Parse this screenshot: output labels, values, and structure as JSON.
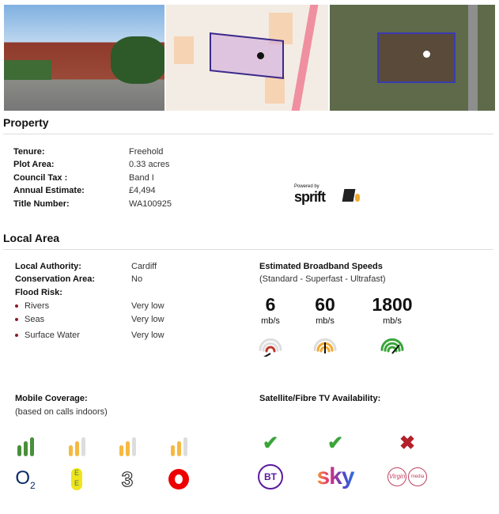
{
  "property": {
    "title": "Property",
    "rows": [
      {
        "label": "Tenure:",
        "value": "Freehold"
      },
      {
        "label": "Plot Area:",
        "value": "0.33 acres"
      },
      {
        "label": "Council Tax :",
        "value": "Band I"
      },
      {
        "label": "Annual Estimate:",
        "value": "£4,494"
      },
      {
        "label": "Title Number:",
        "value": "WA100925"
      }
    ],
    "powered_by": "Powered by",
    "logo_text": "sprift"
  },
  "local_area": {
    "title": "Local Area",
    "rows": [
      {
        "label": "Local Authority:",
        "value": "Cardiff"
      },
      {
        "label": "Conservation Area:",
        "value": "No"
      },
      {
        "label": "Flood Risk:",
        "value": ""
      }
    ],
    "flood": [
      {
        "label": "Rivers",
        "value": "Very low"
      },
      {
        "label": "Seas",
        "value": "Very low"
      },
      {
        "label": "Surface Water",
        "value": "Very low"
      }
    ]
  },
  "broadband": {
    "title": "Estimated Broadband Speeds",
    "subtitle": "(Standard - Superfast - Ultrafast)",
    "speeds": [
      {
        "value": "6",
        "unit": "mb/s",
        "color": "#c0392b"
      },
      {
        "value": "60",
        "unit": "mb/s",
        "color": "#f0a92e"
      },
      {
        "value": "1800",
        "unit": "mb/s",
        "color": "#3aa53a"
      }
    ]
  },
  "mobile": {
    "title": "Mobile Coverage:",
    "subtitle": "(based on calls indoors)",
    "operators": [
      {
        "name": "O2",
        "bars": 3,
        "color": "#4a8f3a"
      },
      {
        "name": "EE",
        "bars": 2,
        "color": "#f5b942"
      },
      {
        "name": "3",
        "bars": 2,
        "color": "#f5b942"
      },
      {
        "name": "Vodafone",
        "bars": 2,
        "color": "#f5b942"
      }
    ]
  },
  "tv": {
    "title": "Satellite/Fibre TV Availability:",
    "providers": [
      {
        "name": "BT",
        "available": true
      },
      {
        "name": "sky",
        "available": true
      },
      {
        "name": "Virgin media",
        "available": false
      }
    ]
  }
}
